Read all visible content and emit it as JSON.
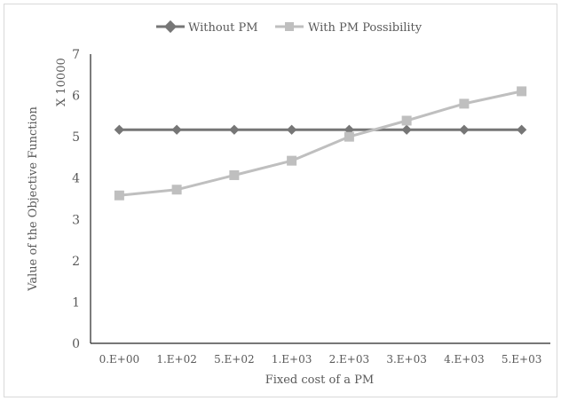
{
  "chart_data": {
    "type": "line",
    "categories": [
      "0.E+00",
      "1.E+02",
      "5.E+02",
      "1.E+03",
      "2.E+03",
      "3.E+03",
      "4.E+03",
      "5.E+03"
    ],
    "series": [
      {
        "name": "Without PM",
        "values": [
          5.17,
          5.17,
          5.17,
          5.17,
          5.17,
          5.17,
          5.17,
          5.17
        ],
        "color": "#767676",
        "marker": "diamond"
      },
      {
        "name": "With PM Possibility",
        "values": [
          3.58,
          3.72,
          4.07,
          4.42,
          5.0,
          5.39,
          5.8,
          6.1
        ],
        "color": "#bfbfbf",
        "marker": "square"
      }
    ],
    "xlabel": "Fixed cost of a PM",
    "ylabel": "Value of the Objective Function",
    "yunit": "X 10000",
    "yticks": [
      "0",
      "1",
      "2",
      "3",
      "4",
      "5",
      "6",
      "7"
    ],
    "ylim": [
      0,
      7
    ],
    "grid": false,
    "legend_position": "top-center"
  }
}
